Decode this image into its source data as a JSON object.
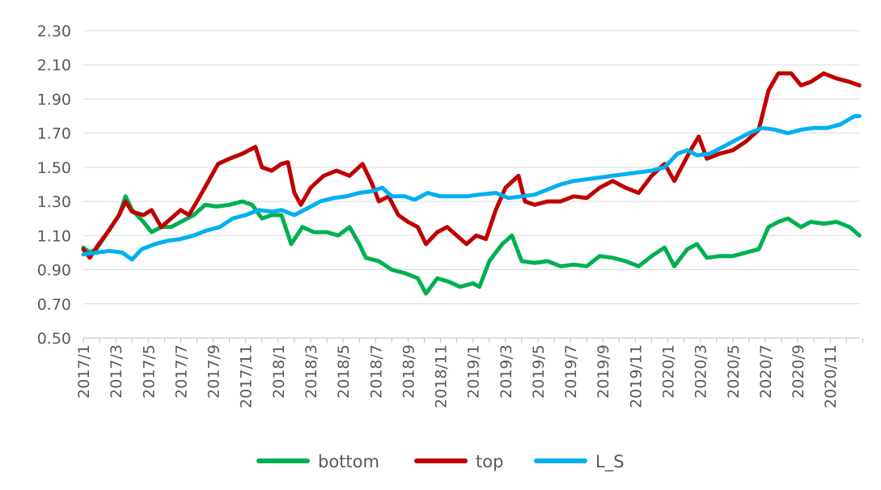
{
  "chart_data": {
    "type": "line",
    "title": "",
    "xlabel": "",
    "ylabel": "",
    "ylim": [
      0.5,
      2.3
    ],
    "yticks": [
      "0.50",
      "0.70",
      "0.90",
      "1.10",
      "1.30",
      "1.50",
      "1.70",
      "1.90",
      "2.10",
      "2.30"
    ],
    "x_unit": "months since 2017/1",
    "xlim": [
      0,
      47.8
    ],
    "xticks": [
      {
        "m": 0,
        "label": "2017/1"
      },
      {
        "m": 2,
        "label": "2017/3"
      },
      {
        "m": 4,
        "label": "2017/5"
      },
      {
        "m": 6,
        "label": "2017/7"
      },
      {
        "m": 8,
        "label": "2017/9"
      },
      {
        "m": 10,
        "label": "2017/11"
      },
      {
        "m": 12,
        "label": "2018/1"
      },
      {
        "m": 14,
        "label": "2018/3"
      },
      {
        "m": 16,
        "label": "2018/5"
      },
      {
        "m": 18,
        "label": "2018/7"
      },
      {
        "m": 20,
        "label": "2018/9"
      },
      {
        "m": 22,
        "label": "2018/11"
      },
      {
        "m": 24,
        "label": "2019/1"
      },
      {
        "m": 26,
        "label": "2019/3"
      },
      {
        "m": 28,
        "label": "2019/5"
      },
      {
        "m": 30,
        "label": "2019/7"
      },
      {
        "m": 32,
        "label": "2019/9"
      },
      {
        "m": 34,
        "label": "2019/11"
      },
      {
        "m": 36,
        "label": "2020/1"
      },
      {
        "m": 38,
        "label": "2020/3"
      },
      {
        "m": 40,
        "label": "2020/5"
      },
      {
        "m": 42,
        "label": "2020/7"
      },
      {
        "m": 44,
        "label": "2020/9"
      },
      {
        "m": 46,
        "label": "2020/11"
      }
    ],
    "grid": true,
    "legend_position": "bottom",
    "series": [
      {
        "name": "bottom",
        "color": "#00B050",
        "points": [
          [
            0,
            1.03
          ],
          [
            0.4,
            1.0
          ],
          [
            0.8,
            1.02
          ],
          [
            1.5,
            1.12
          ],
          [
            2.2,
            1.22
          ],
          [
            2.6,
            1.33
          ],
          [
            3,
            1.25
          ],
          [
            3.7,
            1.18
          ],
          [
            4.2,
            1.12
          ],
          [
            4.8,
            1.15
          ],
          [
            5.4,
            1.15
          ],
          [
            6,
            1.18
          ],
          [
            6.8,
            1.22
          ],
          [
            7.5,
            1.28
          ],
          [
            8.2,
            1.27
          ],
          [
            9,
            1.28
          ],
          [
            9.8,
            1.3
          ],
          [
            10.4,
            1.28
          ],
          [
            11,
            1.2
          ],
          [
            11.6,
            1.22
          ],
          [
            12.2,
            1.22
          ],
          [
            12.8,
            1.05
          ],
          [
            13.5,
            1.15
          ],
          [
            14.2,
            1.12
          ],
          [
            15,
            1.12
          ],
          [
            15.7,
            1.1
          ],
          [
            16.4,
            1.15
          ],
          [
            17,
            1.05
          ],
          [
            17.4,
            0.97
          ],
          [
            18.2,
            0.95
          ],
          [
            19,
            0.9
          ],
          [
            19.8,
            0.88
          ],
          [
            20.6,
            0.85
          ],
          [
            21.1,
            0.76
          ],
          [
            21.8,
            0.85
          ],
          [
            22.5,
            0.83
          ],
          [
            23.2,
            0.8
          ],
          [
            24,
            0.82
          ],
          [
            24.4,
            0.8
          ],
          [
            25,
            0.95
          ],
          [
            25.8,
            1.05
          ],
          [
            26.4,
            1.1
          ],
          [
            27,
            0.95
          ],
          [
            27.8,
            0.94
          ],
          [
            28.6,
            0.95
          ],
          [
            29.4,
            0.92
          ],
          [
            30.2,
            0.93
          ],
          [
            31,
            0.92
          ],
          [
            31.8,
            0.98
          ],
          [
            32.6,
            0.97
          ],
          [
            33.4,
            0.95
          ],
          [
            34.2,
            0.92
          ],
          [
            35,
            0.98
          ],
          [
            35.8,
            1.03
          ],
          [
            36.4,
            0.92
          ],
          [
            37.2,
            1.02
          ],
          [
            37.8,
            1.05
          ],
          [
            38.4,
            0.97
          ],
          [
            39.2,
            0.98
          ],
          [
            40,
            0.98
          ],
          [
            40.8,
            1.0
          ],
          [
            41.6,
            1.02
          ],
          [
            42.2,
            1.15
          ],
          [
            42.8,
            1.18
          ],
          [
            43.4,
            1.2
          ],
          [
            44.2,
            1.15
          ],
          [
            44.8,
            1.18
          ],
          [
            45.6,
            1.17
          ],
          [
            46.4,
            1.18
          ],
          [
            47.2,
            1.15
          ],
          [
            47.8,
            1.1
          ]
        ]
      },
      {
        "name": "top",
        "color": "#C00000",
        "points": [
          [
            0,
            1.02
          ],
          [
            0.4,
            0.97
          ],
          [
            0.8,
            1.03
          ],
          [
            1.5,
            1.12
          ],
          [
            2.2,
            1.22
          ],
          [
            2.6,
            1.3
          ],
          [
            3,
            1.24
          ],
          [
            3.7,
            1.22
          ],
          [
            4.2,
            1.25
          ],
          [
            4.8,
            1.15
          ],
          [
            5.4,
            1.2
          ],
          [
            6,
            1.25
          ],
          [
            6.5,
            1.22
          ],
          [
            7,
            1.3
          ],
          [
            7.6,
            1.4
          ],
          [
            8.3,
            1.52
          ],
          [
            9,
            1.55
          ],
          [
            9.8,
            1.58
          ],
          [
            10.6,
            1.62
          ],
          [
            11,
            1.5
          ],
          [
            11.6,
            1.48
          ],
          [
            12.2,
            1.52
          ],
          [
            12.6,
            1.53
          ],
          [
            13,
            1.35
          ],
          [
            13.4,
            1.28
          ],
          [
            14,
            1.38
          ],
          [
            14.8,
            1.45
          ],
          [
            15.6,
            1.48
          ],
          [
            16.4,
            1.45
          ],
          [
            17.2,
            1.52
          ],
          [
            17.8,
            1.4
          ],
          [
            18.2,
            1.3
          ],
          [
            18.8,
            1.33
          ],
          [
            19.4,
            1.22
          ],
          [
            20,
            1.18
          ],
          [
            20.6,
            1.15
          ],
          [
            21.1,
            1.05
          ],
          [
            21.8,
            1.12
          ],
          [
            22.4,
            1.15
          ],
          [
            23,
            1.1
          ],
          [
            23.6,
            1.05
          ],
          [
            24.2,
            1.1
          ],
          [
            24.8,
            1.08
          ],
          [
            25.4,
            1.25
          ],
          [
            26,
            1.38
          ],
          [
            26.8,
            1.45
          ],
          [
            27.2,
            1.3
          ],
          [
            27.8,
            1.28
          ],
          [
            28.6,
            1.3
          ],
          [
            29.4,
            1.3
          ],
          [
            30.2,
            1.33
          ],
          [
            31,
            1.32
          ],
          [
            31.8,
            1.38
          ],
          [
            32.6,
            1.42
          ],
          [
            33.4,
            1.38
          ],
          [
            34.2,
            1.35
          ],
          [
            35,
            1.45
          ],
          [
            35.8,
            1.52
          ],
          [
            36.4,
            1.42
          ],
          [
            37.4,
            1.6
          ],
          [
            37.9,
            1.68
          ],
          [
            38.4,
            1.55
          ],
          [
            39.2,
            1.58
          ],
          [
            40,
            1.6
          ],
          [
            40.8,
            1.65
          ],
          [
            41.6,
            1.72
          ],
          [
            42.2,
            1.95
          ],
          [
            42.8,
            2.05
          ],
          [
            43.6,
            2.05
          ],
          [
            44.2,
            1.98
          ],
          [
            44.8,
            2.0
          ],
          [
            45.6,
            2.05
          ],
          [
            46.4,
            2.02
          ],
          [
            47.2,
            2.0
          ],
          [
            47.8,
            1.98
          ]
        ]
      },
      {
        "name": "L_S",
        "color": "#00B0F0",
        "points": [
          [
            0,
            0.99
          ],
          [
            0.8,
            1.0
          ],
          [
            1.6,
            1.01
          ],
          [
            2.4,
            1.0
          ],
          [
            3,
            0.96
          ],
          [
            3.6,
            1.02
          ],
          [
            4.4,
            1.05
          ],
          [
            5.2,
            1.07
          ],
          [
            6,
            1.08
          ],
          [
            6.8,
            1.1
          ],
          [
            7.6,
            1.13
          ],
          [
            8.4,
            1.15
          ],
          [
            9.2,
            1.2
          ],
          [
            10,
            1.22
          ],
          [
            10.8,
            1.25
          ],
          [
            11.6,
            1.24
          ],
          [
            12.2,
            1.25
          ],
          [
            13,
            1.22
          ],
          [
            13.8,
            1.26
          ],
          [
            14.6,
            1.3
          ],
          [
            15.4,
            1.32
          ],
          [
            16.2,
            1.33
          ],
          [
            17,
            1.35
          ],
          [
            17.8,
            1.36
          ],
          [
            18.4,
            1.38
          ],
          [
            19,
            1.33
          ],
          [
            19.8,
            1.33
          ],
          [
            20.4,
            1.31
          ],
          [
            21.2,
            1.35
          ],
          [
            22,
            1.33
          ],
          [
            22.8,
            1.33
          ],
          [
            23.6,
            1.33
          ],
          [
            24.4,
            1.34
          ],
          [
            25.4,
            1.35
          ],
          [
            26.2,
            1.32
          ],
          [
            27,
            1.33
          ],
          [
            27.8,
            1.34
          ],
          [
            28.6,
            1.37
          ],
          [
            29.4,
            1.4
          ],
          [
            30.2,
            1.42
          ],
          [
            31,
            1.43
          ],
          [
            31.8,
            1.44
          ],
          [
            32.6,
            1.45
          ],
          [
            33.4,
            1.46
          ],
          [
            34.2,
            1.47
          ],
          [
            35,
            1.48
          ],
          [
            35.8,
            1.5
          ],
          [
            36.6,
            1.58
          ],
          [
            37.2,
            1.6
          ],
          [
            37.8,
            1.57
          ],
          [
            38.6,
            1.58
          ],
          [
            39.4,
            1.62
          ],
          [
            40.2,
            1.66
          ],
          [
            41,
            1.7
          ],
          [
            41.8,
            1.73
          ],
          [
            42.6,
            1.72
          ],
          [
            43.4,
            1.7
          ],
          [
            44.2,
            1.72
          ],
          [
            45,
            1.73
          ],
          [
            45.8,
            1.73
          ],
          [
            46.6,
            1.75
          ],
          [
            47.5,
            1.8
          ],
          [
            47.8,
            1.8
          ]
        ]
      }
    ]
  }
}
